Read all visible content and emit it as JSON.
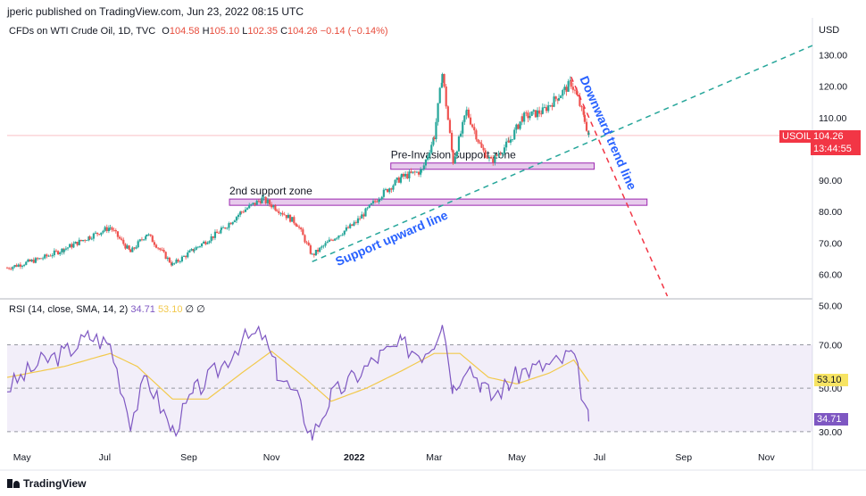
{
  "header": {
    "published": "jperic published on TradingView.com, Jun 23, 2022 08:15 UTC",
    "currency": "USD"
  },
  "legend": {
    "symbol": "CFDs on WTI Crude Oil, 1D, TVC",
    "o_label": "O",
    "o_value": "104.58",
    "h_label": "H",
    "h_value": "105.10",
    "l_label": "L",
    "l_value": "102.35",
    "c_label": "C",
    "c_value": "104.26",
    "change": "−0.14 (−0.14%)"
  },
  "price_tag": {
    "symbol": "USOIL",
    "price": "104.26",
    "countdown": "13:44:55",
    "color": "#f23645"
  },
  "rsi_legend": {
    "label": "RSI (14, close, SMA, 14, 2)",
    "rsi_value": "34.71",
    "sma_value": "53.10",
    "icons": "∅ ∅"
  },
  "rsi_tags": {
    "sma": "53.10",
    "rsi": "34.71"
  },
  "brand": "TradingView",
  "chart_data": {
    "type": "candlestick",
    "price_axis": {
      "ylim": [
        53,
        135
      ],
      "ticks": [
        130,
        120,
        110,
        100,
        90,
        80,
        70,
        60,
        50
      ],
      "tick_labels": [
        "130.00",
        "120.00",
        "110.00",
        "",
        "90.00",
        "80.00",
        "70.00",
        "60.00",
        "50.00"
      ]
    },
    "x_axis": {
      "labels": [
        "May",
        "Jul",
        "Sep",
        "Nov",
        "2022",
        "Mar",
        "May",
        "Jul",
        "Sep",
        "Nov"
      ],
      "dates": [
        "2021-05-01",
        "2021-07-01",
        "2021-09-01",
        "2021-11-01",
        "2022-01-01",
        "2022-03-01",
        "2022-05-01",
        "2022-07-01",
        "2022-09-01",
        "2022-11-01"
      ],
      "range": [
        "2021-04-20",
        "2022-12-05"
      ]
    },
    "close_series": [
      [
        "2021-04-20",
        62
      ],
      [
        "2021-05-15",
        65
      ],
      [
        "2021-06-01",
        68
      ],
      [
        "2021-06-20",
        72
      ],
      [
        "2021-07-05",
        75
      ],
      [
        "2021-07-20",
        67
      ],
      [
        "2021-08-01",
        73
      ],
      [
        "2021-08-20",
        63
      ],
      [
        "2021-09-05",
        68
      ],
      [
        "2021-09-25",
        74
      ],
      [
        "2021-10-10",
        80
      ],
      [
        "2021-10-25",
        84
      ],
      [
        "2021-11-05",
        81
      ],
      [
        "2021-11-20",
        76
      ],
      [
        "2021-12-01",
        66
      ],
      [
        "2021-12-15",
        71
      ],
      [
        "2022-01-01",
        76
      ],
      [
        "2022-01-20",
        85
      ],
      [
        "2022-02-05",
        91
      ],
      [
        "2022-02-20",
        93
      ],
      [
        "2022-03-01",
        104
      ],
      [
        "2022-03-07",
        124
      ],
      [
        "2022-03-15",
        96
      ],
      [
        "2022-03-25",
        112
      ],
      [
        "2022-04-05",
        100
      ],
      [
        "2022-04-12",
        96
      ],
      [
        "2022-04-25",
        102
      ],
      [
        "2022-05-05",
        110
      ],
      [
        "2022-05-20",
        112
      ],
      [
        "2022-06-01",
        117
      ],
      [
        "2022-06-10",
        121
      ],
      [
        "2022-06-15",
        116
      ],
      [
        "2022-06-20",
        109
      ],
      [
        "2022-06-23",
        104.26
      ]
    ],
    "rsi": {
      "ylim": [
        25,
        85
      ],
      "ticks": [
        70,
        50,
        30
      ],
      "tick_labels": [
        "70.00",
        "50.00",
        "30.00"
      ],
      "band": [
        30,
        70
      ],
      "rsi_series": [
        [
          "2021-04-20",
          50
        ],
        [
          "2021-05-15",
          62
        ],
        [
          "2021-06-01",
          66
        ],
        [
          "2021-06-20",
          74
        ],
        [
          "2021-07-05",
          70
        ],
        [
          "2021-07-20",
          35
        ],
        [
          "2021-08-01",
          55
        ],
        [
          "2021-08-20",
          30
        ],
        [
          "2021-09-05",
          48
        ],
        [
          "2021-09-25",
          60
        ],
        [
          "2021-10-10",
          72
        ],
        [
          "2021-10-25",
          75
        ],
        [
          "2021-11-05",
          58
        ],
        [
          "2021-11-20",
          45
        ],
        [
          "2021-12-01",
          28
        ],
        [
          "2021-12-15",
          46
        ],
        [
          "2022-01-01",
          55
        ],
        [
          "2022-01-20",
          65
        ],
        [
          "2022-02-05",
          70
        ],
        [
          "2022-02-20",
          66
        ],
        [
          "2022-03-01",
          72
        ],
        [
          "2022-03-07",
          82
        ],
        [
          "2022-03-15",
          50
        ],
        [
          "2022-03-25",
          62
        ],
        [
          "2022-04-05",
          52
        ],
        [
          "2022-04-12",
          46
        ],
        [
          "2022-04-25",
          52
        ],
        [
          "2022-05-05",
          58
        ],
        [
          "2022-05-20",
          60
        ],
        [
          "2022-06-01",
          62
        ],
        [
          "2022-06-10",
          66
        ],
        [
          "2022-06-15",
          57
        ],
        [
          "2022-06-20",
          42
        ],
        [
          "2022-06-23",
          34.71
        ]
      ],
      "sma_series": [
        [
          "2021-04-20",
          55
        ],
        [
          "2021-06-01",
          60
        ],
        [
          "2021-07-05",
          66
        ],
        [
          "2021-07-25",
          60
        ],
        [
          "2021-08-20",
          45
        ],
        [
          "2021-09-15",
          45
        ],
        [
          "2021-10-10",
          57
        ],
        [
          "2021-11-01",
          67
        ],
        [
          "2021-11-25",
          55
        ],
        [
          "2021-12-15",
          44
        ],
        [
          "2022-01-10",
          50
        ],
        [
          "2022-02-05",
          58
        ],
        [
          "2022-03-01",
          66
        ],
        [
          "2022-03-20",
          66
        ],
        [
          "2022-04-10",
          55
        ],
        [
          "2022-05-01",
          52
        ],
        [
          "2022-05-25",
          57
        ],
        [
          "2022-06-12",
          63
        ],
        [
          "2022-06-23",
          53.1
        ]
      ]
    },
    "zones": [
      {
        "label": "2nd support zone",
        "from": "2021-10-01",
        "to": "2022-08-05",
        "low": 82,
        "high": 84
      },
      {
        "label": "Pre-Invasion support zone",
        "from": "2022-01-28",
        "to": "2022-06-27",
        "low": 93.5,
        "high": 95.5
      }
    ],
    "trend_lines": [
      {
        "label": "Support upward line",
        "from": [
          "2021-12-01",
          64
        ],
        "to": [
          "2022-12-05",
          133
        ],
        "color": "#26a69a"
      },
      {
        "label": "Downward trend line",
        "from": [
          "2022-06-10",
          123
        ],
        "to": [
          "2022-08-20",
          53
        ],
        "color": "#f23645"
      }
    ],
    "last_price": 104.26
  }
}
